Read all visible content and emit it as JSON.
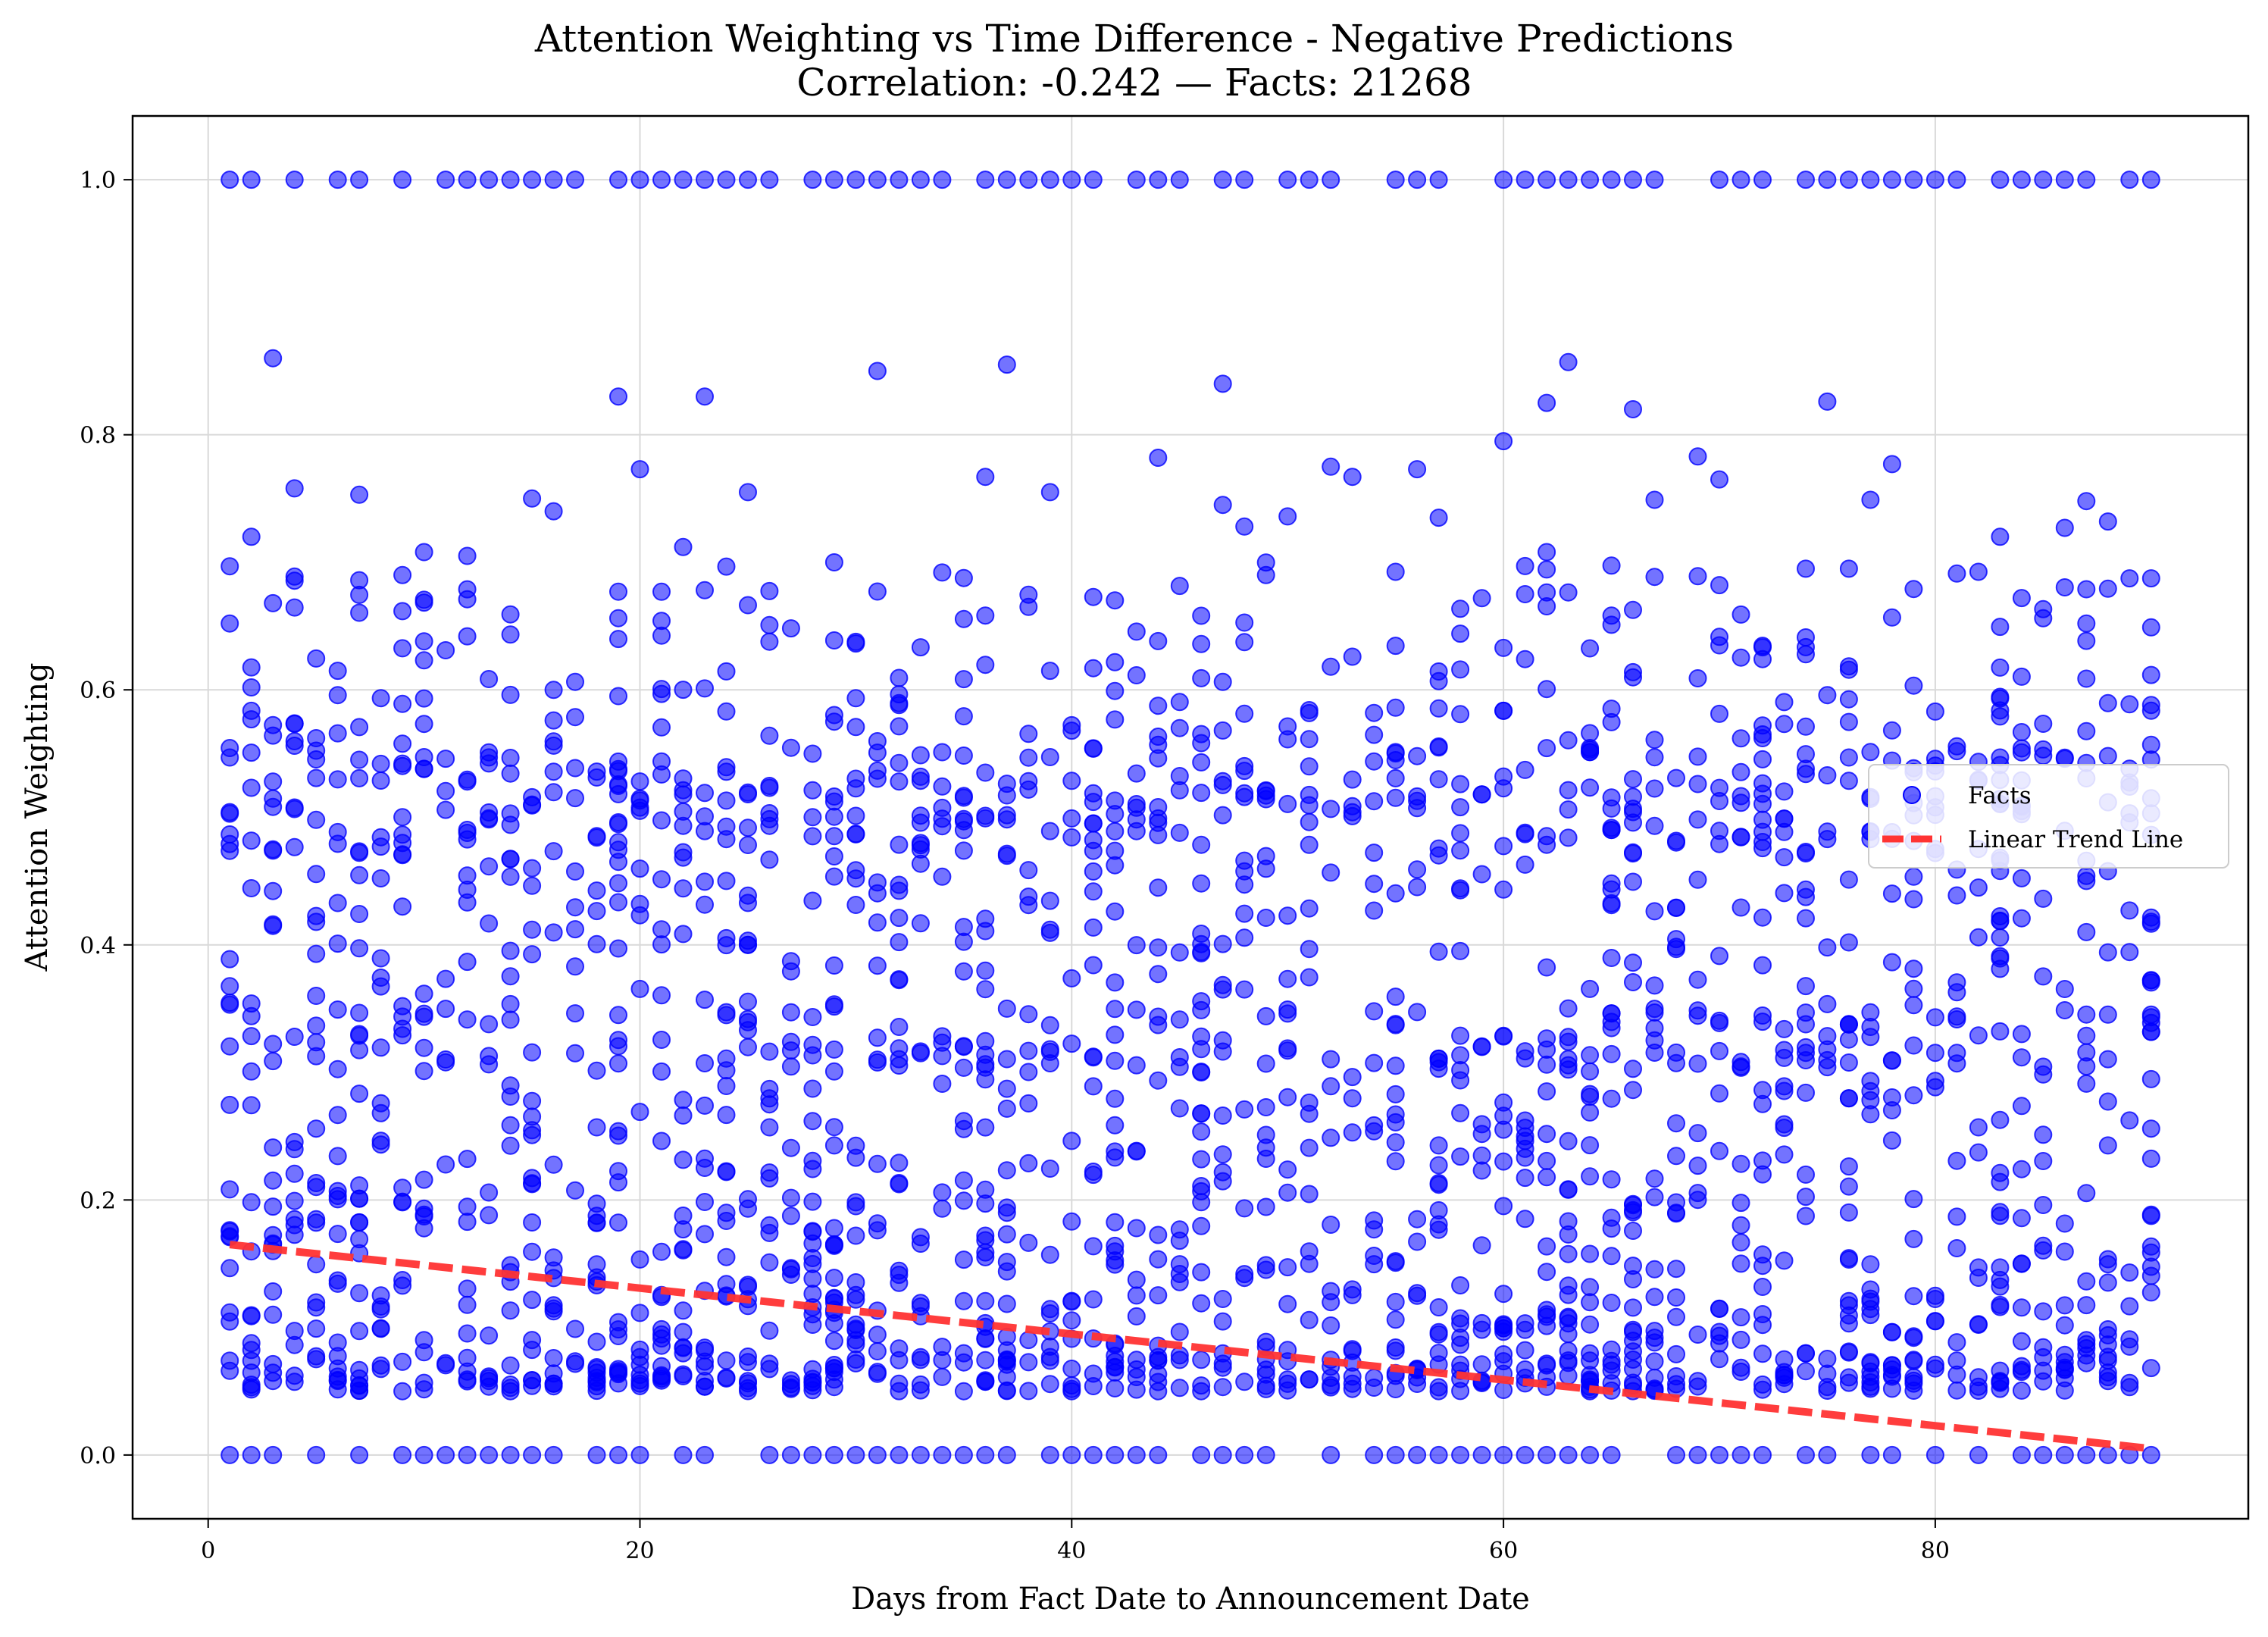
{
  "chart_data": {
    "type": "scatter",
    "title": "Attention Weighting vs Time Difference - Negative Predictions",
    "subtitle": "Correlation: -0.242 — Facts: 21268",
    "xlabel": "Days from Fact Date to Announcement Date",
    "ylabel": "Attention Weighting",
    "xlim": [
      -3.5,
      94.5
    ],
    "ylim": [
      -0.05,
      1.05
    ],
    "xticks": [
      0,
      20,
      40,
      60,
      80
    ],
    "yticks": [
      0.0,
      0.2,
      0.4,
      0.6,
      0.8,
      1.0
    ],
    "xtick_labels": [
      "0",
      "20",
      "40",
      "60",
      "80"
    ],
    "ytick_labels": [
      "0.0",
      "0.2",
      "0.4",
      "0.6",
      "0.8",
      "1.0"
    ],
    "grid": true,
    "legend_position": "center-right",
    "series": [
      {
        "name": "Facts",
        "kind": "scatter",
        "color": "#0000ff",
        "x_range": [
          1,
          90
        ],
        "x_step": 1,
        "bands": [
          {
            "y": 1.0,
            "spread": 0.0
          },
          {
            "y": 0.0,
            "spread": 0.0
          },
          {
            "y": 0.065,
            "spread": 0.012
          },
          {
            "y": 0.53,
            "spread": 0.025
          }
        ],
        "outliers": [
          [
            3,
            0.86
          ],
          [
            19,
            0.83
          ],
          [
            23,
            0.83
          ],
          [
            31,
            0.85
          ],
          [
            37,
            0.855
          ],
          [
            47,
            0.84
          ],
          [
            63,
            0.857
          ],
          [
            62,
            0.825
          ],
          [
            66,
            0.82
          ],
          [
            75,
            0.826
          ],
          [
            60,
            0.795
          ],
          [
            44,
            0.782
          ],
          [
            69,
            0.783
          ],
          [
            78,
            0.777
          ],
          [
            2,
            0.72
          ],
          [
            4,
            0.758
          ],
          [
            7,
            0.753
          ],
          [
            15,
            0.75
          ],
          [
            16,
            0.74
          ],
          [
            20,
            0.773
          ],
          [
            25,
            0.755
          ],
          [
            36,
            0.767
          ],
          [
            39,
            0.755
          ],
          [
            52,
            0.775
          ],
          [
            53,
            0.767
          ],
          [
            56,
            0.773
          ],
          [
            57,
            0.735
          ],
          [
            70,
            0.765
          ],
          [
            77,
            0.749
          ],
          [
            87,
            0.748
          ],
          [
            88,
            0.732
          ],
          [
            10,
            0.708
          ],
          [
            12,
            0.705
          ],
          [
            22,
            0.712
          ],
          [
            47,
            0.745
          ],
          [
            48,
            0.728
          ],
          [
            50,
            0.736
          ],
          [
            62,
            0.708
          ],
          [
            67,
            0.749
          ],
          [
            83,
            0.72
          ],
          [
            86,
            0.727
          ],
          [
            1,
            0.652
          ],
          [
            9,
            0.69
          ],
          [
            19,
            0.677
          ],
          [
            29,
            0.7
          ],
          [
            34,
            0.692
          ],
          [
            38,
            0.665
          ],
          [
            61,
            0.675
          ],
          [
            65,
            0.651
          ],
          [
            74,
            0.695
          ],
          [
            76,
            0.695
          ],
          [
            84,
            0.672
          ],
          [
            87,
            0.652
          ],
          [
            90,
            0.649
          ]
        ],
        "random_count": 1900,
        "random_seed": 7
      },
      {
        "name": "Linear Trend Line",
        "kind": "line",
        "color": "#ff3333",
        "style": "dashed",
        "x": [
          1,
          90
        ],
        "y": [
          0.165,
          0.005
        ]
      }
    ]
  }
}
